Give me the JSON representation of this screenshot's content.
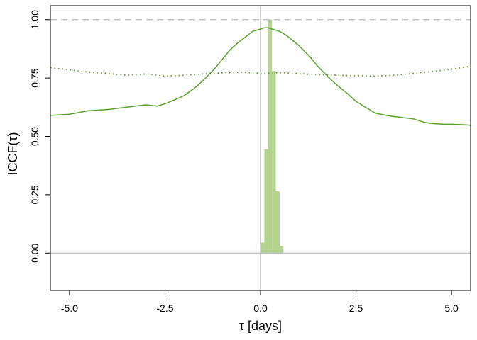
{
  "chart_data": {
    "type": "line",
    "title": "",
    "xlabel": "τ [days]",
    "ylabel": "ICCF(τ)",
    "xlim": [
      -5.5,
      5.5
    ],
    "ylim": [
      -0.16,
      1.06
    ],
    "x_ticks": [
      -5.0,
      -2.5,
      0.0,
      2.5,
      5.0
    ],
    "x_tick_labels": [
      "-5.0",
      "-2.5",
      "0.0",
      "2.5",
      "5.0"
    ],
    "y_ticks": [
      0.0,
      0.25,
      0.5,
      0.75,
      1.0
    ],
    "y_tick_labels": [
      "0.00",
      "0.25",
      "0.50",
      "0.75",
      "1.00"
    ],
    "grid": false,
    "reference_lines": [
      {
        "orientation": "horizontal",
        "value": 1.0,
        "style": "dashed",
        "color": "#bbbbbb"
      },
      {
        "orientation": "horizontal",
        "value": 0.0,
        "style": "solid",
        "color": "#bbbbbb"
      },
      {
        "orientation": "vertical",
        "value": 0.0,
        "style": "solid",
        "color": "#bbbbbb"
      }
    ],
    "series": [
      {
        "style": "solid",
        "color": "#5aa02c",
        "x": [
          -5.5,
          -5.0,
          -4.5,
          -4.0,
          -3.5,
          -3.0,
          -2.7,
          -2.5,
          -2.2,
          -2.0,
          -1.7,
          -1.5,
          -1.2,
          -1.0,
          -0.8,
          -0.6,
          -0.4,
          -0.2,
          0.0,
          0.1,
          0.2,
          0.3,
          0.5,
          0.7,
          1.0,
          1.3,
          1.5,
          1.8,
          2.0,
          2.3,
          2.5,
          2.8,
          3.0,
          3.3,
          3.5,
          4.0,
          4.3,
          4.5,
          4.8,
          5.0,
          5.3,
          5.5
        ],
        "y": [
          0.59,
          0.595,
          0.61,
          0.615,
          0.625,
          0.635,
          0.63,
          0.64,
          0.66,
          0.675,
          0.71,
          0.74,
          0.79,
          0.83,
          0.87,
          0.9,
          0.925,
          0.95,
          0.96,
          0.965,
          0.965,
          0.96,
          0.95,
          0.93,
          0.89,
          0.84,
          0.8,
          0.75,
          0.72,
          0.68,
          0.65,
          0.62,
          0.6,
          0.59,
          0.585,
          0.575,
          0.56,
          0.555,
          0.552,
          0.552,
          0.55,
          0.548
        ]
      },
      {
        "style": "dotted",
        "color": "#5a8a2c",
        "x": [
          -5.5,
          -5.0,
          -4.5,
          -4.0,
          -3.5,
          -3.0,
          -2.5,
          -2.0,
          -1.5,
          -1.0,
          -0.5,
          0.0,
          0.5,
          1.0,
          1.5,
          2.0,
          2.5,
          3.0,
          3.5,
          4.0,
          4.5,
          5.0,
          5.5
        ],
        "y": [
          0.795,
          0.785,
          0.775,
          0.77,
          0.762,
          0.768,
          0.758,
          0.762,
          0.768,
          0.772,
          0.775,
          0.77,
          0.773,
          0.77,
          0.765,
          0.762,
          0.76,
          0.758,
          0.762,
          0.77,
          0.778,
          0.788,
          0.8
        ]
      }
    ],
    "histogram": {
      "color": "#b3d38f",
      "bins": [
        {
          "x0": 0.0,
          "x1": 0.1,
          "value": 0.045
        },
        {
          "x0": 0.1,
          "x1": 0.2,
          "value": 0.445
        },
        {
          "x0": 0.2,
          "x1": 0.3,
          "value": 1.0
        },
        {
          "x0": 0.3,
          "x1": 0.4,
          "value": 0.78
        },
        {
          "x0": 0.4,
          "x1": 0.5,
          "value": 0.265
        },
        {
          "x0": 0.5,
          "x1": 0.6,
          "value": 0.03
        }
      ]
    }
  }
}
